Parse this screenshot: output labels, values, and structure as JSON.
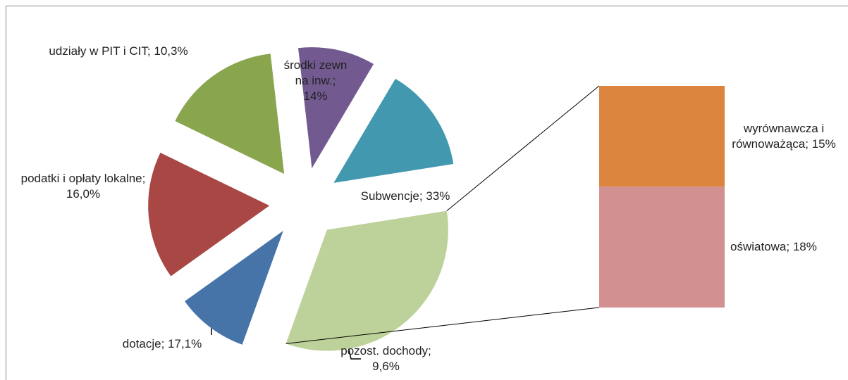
{
  "chart_data": {
    "type": "bar-of-pie",
    "values": [
      14,
      33,
      9.6,
      17.1,
      16.0,
      10.3
    ],
    "value_labels": [
      "środki zewn na inw.; 14%",
      "Subwencje; 33%",
      "pozost. dochody; 9,6%",
      "dotacje; 17,1%",
      "podatki i opłaty lokalne; 16,0%",
      "udziały w PIT i CIT; 10,3%"
    ],
    "colors": [
      "#4198AF",
      "#BDD29A",
      "#4673A8",
      "#A84744",
      "#89A54E",
      "#725A91"
    ],
    "bar": {
      "values": [
        15,
        18
      ],
      "value_labels": [
        "wyrównawcza i równoważąca; 15%",
        "oświatowa; 18%"
      ],
      "colors": [
        "#DB843D",
        "#D29190"
      ]
    }
  }
}
